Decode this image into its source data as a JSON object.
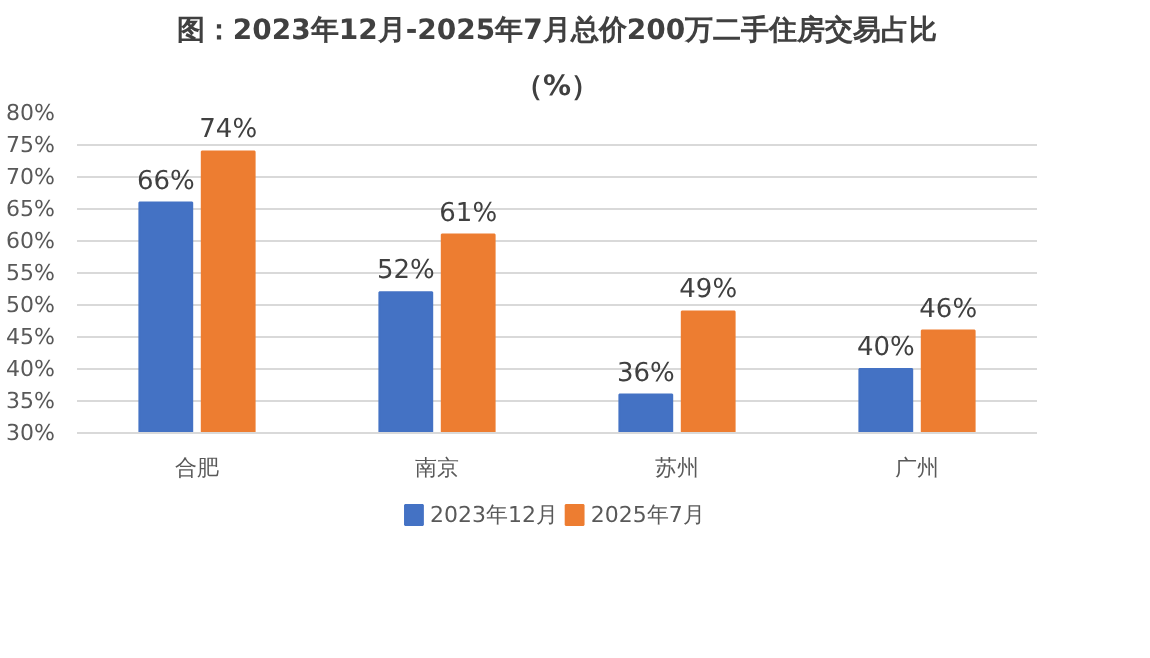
{
  "chart_data": {
    "type": "bar",
    "title": "图：2023年12月-2025年7月总价200万二手住房交易占比",
    "subtitle": "（%）",
    "categories": [
      "合肥",
      "南京",
      "苏州",
      "广州"
    ],
    "series": [
      {
        "name": "2023年12月",
        "color": "#4472c4",
        "values": [
          66,
          52,
          36,
          40
        ],
        "value_labels": [
          "66%",
          "52%",
          "36%",
          "40%"
        ]
      },
      {
        "name": "2025年7月",
        "color": "#ed7d31",
        "values": [
          74,
          61,
          49,
          46
        ],
        "value_labels": [
          "74%",
          "61%",
          "49%",
          "46%"
        ]
      }
    ],
    "ylim": [
      30,
      80
    ],
    "yticks": [
      {
        "value": 30,
        "label": "30%"
      },
      {
        "value": 35,
        "label": "35%"
      },
      {
        "value": 40,
        "label": "40%"
      },
      {
        "value": 45,
        "label": "45%"
      },
      {
        "value": 50,
        "label": "50%"
      },
      {
        "value": 55,
        "label": "55%"
      },
      {
        "value": 60,
        "label": "60%"
      },
      {
        "value": 65,
        "label": "65%"
      },
      {
        "value": 70,
        "label": "70%"
      },
      {
        "value": 75,
        "label": "75%"
      },
      {
        "value": 80,
        "label": "80%"
      }
    ],
    "grid": "y",
    "legend": "bottom"
  }
}
